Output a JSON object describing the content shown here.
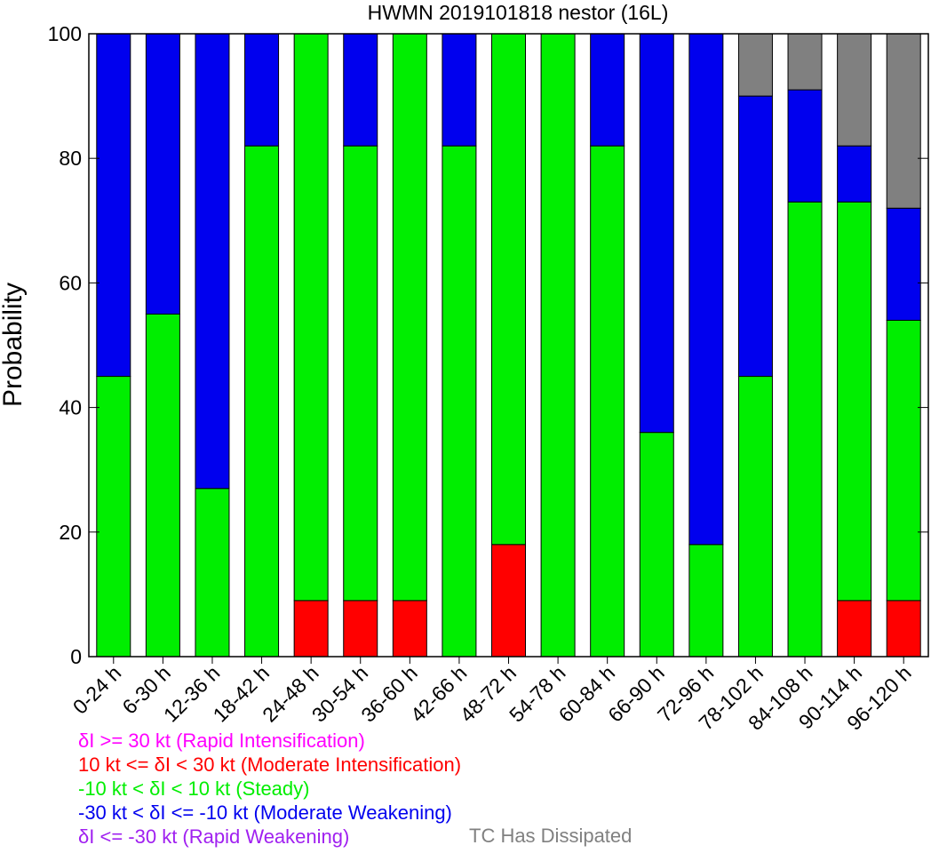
{
  "chart_data": {
    "type": "bar",
    "stacked": true,
    "title": "HWMN 2019101818 nestor (16L)",
    "ylabel": "Probability",
    "ylim": [
      0,
      100
    ],
    "yticks": [
      0,
      20,
      40,
      60,
      80,
      100
    ],
    "categories": [
      "0-24 h",
      "6-30 h",
      "12-36 h",
      "18-42 h",
      "24-48 h",
      "30-54 h",
      "36-60 h",
      "42-66 h",
      "48-72 h",
      "54-78 h",
      "60-84 h",
      "66-90 h",
      "72-96 h",
      "78-102 h",
      "84-108 h",
      "90-114 h",
      "96-120 h"
    ],
    "series": [
      {
        "name": "δI >= 30 kt (Rapid Intensification)",
        "color": "#ff00ff",
        "values": [
          0,
          0,
          0,
          0,
          0,
          0,
          0,
          0,
          0,
          0,
          0,
          0,
          0,
          0,
          0,
          0,
          0
        ]
      },
      {
        "name": "10 kt <= δI < 30 kt (Moderate Intensification)",
        "color": "#ff0000",
        "values": [
          0,
          0,
          0,
          0,
          9,
          9,
          9,
          0,
          18,
          0,
          0,
          0,
          0,
          0,
          0,
          9,
          9
        ]
      },
      {
        "name": "-10 kt < δI < 10 kt (Steady)",
        "color": "#00ee00",
        "values": [
          45,
          55,
          27,
          82,
          91,
          73,
          91,
          82,
          82,
          100,
          82,
          36,
          18,
          45,
          73,
          64,
          45
        ]
      },
      {
        "name": "-30 kt < δI <= -10 kt (Moderate Weakening)",
        "color": "#0000ee",
        "values": [
          55,
          45,
          73,
          18,
          0,
          18,
          0,
          18,
          0,
          0,
          18,
          64,
          82,
          45,
          18,
          9,
          18
        ]
      },
      {
        "name": "δI <= -30 kt (Rapid Weakening)",
        "color": "#a020f0",
        "values": [
          0,
          0,
          0,
          0,
          0,
          0,
          0,
          0,
          0,
          0,
          0,
          0,
          0,
          0,
          0,
          0,
          0
        ]
      },
      {
        "name": "TC Has Dissipated",
        "color": "#808080",
        "values": [
          0,
          0,
          0,
          0,
          0,
          0,
          0,
          0,
          0,
          0,
          0,
          0,
          0,
          10,
          9,
          18,
          28
        ]
      }
    ]
  },
  "legend": {
    "ri": "δI >= 30 kt (Rapid Intensification)",
    "mi": "10 kt <= δI < 30 kt (Moderate Intensification)",
    "steady": "-10 kt < δI < 10 kt (Steady)",
    "mw": "-30 kt < δI <= -10 kt (Moderate Weakening)",
    "rw": "δI <= -30 kt (Rapid Weakening)",
    "dissipated": "TC Has Dissipated"
  }
}
